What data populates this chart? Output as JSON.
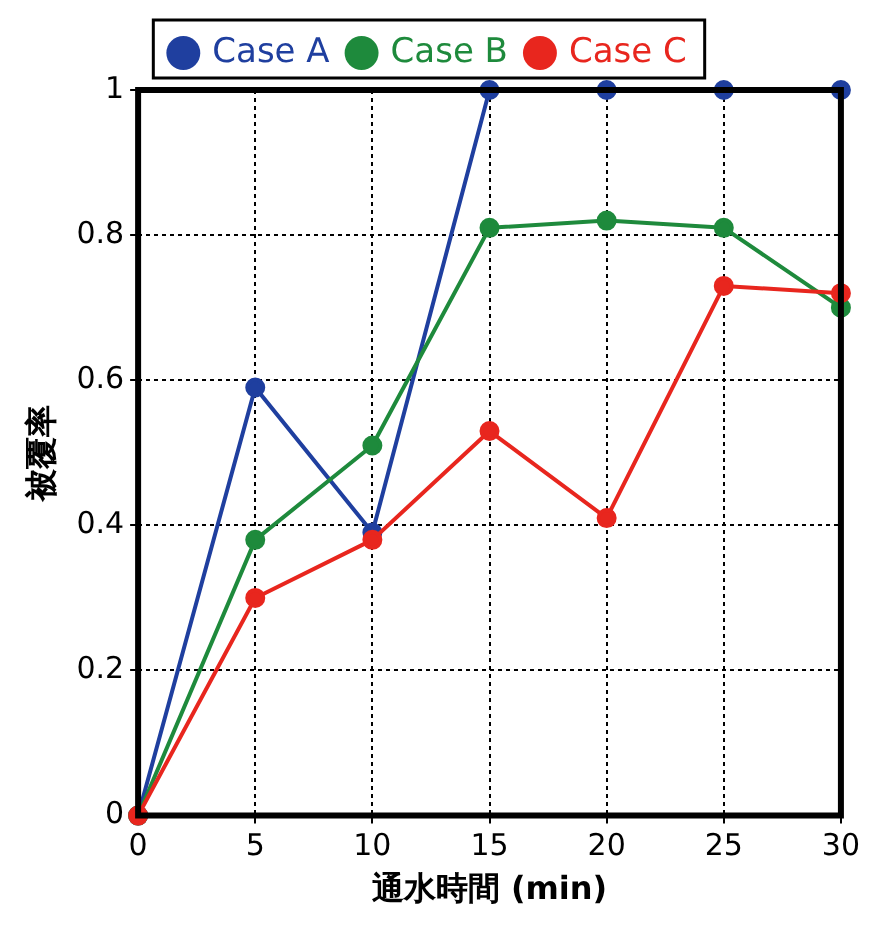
{
  "chart_data": {
    "type": "line",
    "xlabel": "通水時間 (min)",
    "ylabel": "被覆率",
    "x": [
      0,
      5,
      10,
      15,
      20,
      25,
      30
    ],
    "series": [
      {
        "name": "Case A",
        "color": "#1f3f9f",
        "values": [
          0,
          0.59,
          0.39,
          1,
          1,
          1,
          1
        ]
      },
      {
        "name": "Case B",
        "color": "#1e8a3c",
        "values": [
          0,
          0.38,
          0.51,
          0.81,
          0.82,
          0.81,
          0.7
        ]
      },
      {
        "name": "Case C",
        "color": "#e8261e",
        "values": [
          0,
          0.3,
          0.38,
          0.53,
          0.41,
          0.73,
          0.72
        ]
      }
    ],
    "xlim": [
      0,
      30
    ],
    "xticks": [
      0,
      5,
      10,
      15,
      20,
      25,
      30
    ],
    "ylim": [
      0,
      1
    ],
    "yticks": [
      0,
      0.2,
      0.4,
      0.6,
      0.8,
      1
    ],
    "grid": true,
    "legend": "top",
    "marker": "circle",
    "line_style": "solid"
  }
}
